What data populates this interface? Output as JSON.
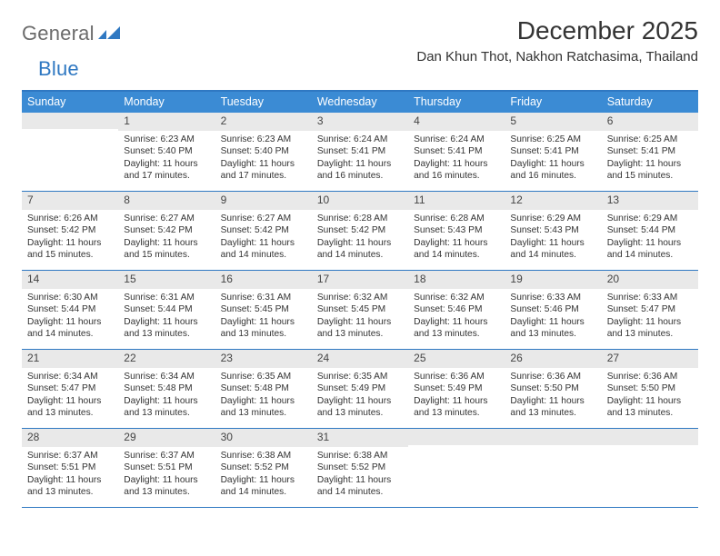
{
  "logo": {
    "text_a": "General",
    "text_b": "Blue"
  },
  "title": "December 2025",
  "location": "Dan Khun Thot, Nakhon Ratchasima, Thailand",
  "colors": {
    "header_bg": "#3b8bd4",
    "accent_border": "#2f78c2",
    "daynum_bg": "#e9e9e9",
    "text": "#333333",
    "logo_gray": "#6b6b6b"
  },
  "typography": {
    "title_fontsize": 28,
    "location_fontsize": 15,
    "dayheader_fontsize": 12.5,
    "cell_fontsize": 10.2
  },
  "day_names": [
    "Sunday",
    "Monday",
    "Tuesday",
    "Wednesday",
    "Thursday",
    "Friday",
    "Saturday"
  ],
  "weeks": [
    [
      {
        "n": "",
        "sunrise": "",
        "sunset": "",
        "daylight": ""
      },
      {
        "n": "1",
        "sunrise": "Sunrise: 6:23 AM",
        "sunset": "Sunset: 5:40 PM",
        "daylight": "Daylight: 11 hours and 17 minutes."
      },
      {
        "n": "2",
        "sunrise": "Sunrise: 6:23 AM",
        "sunset": "Sunset: 5:40 PM",
        "daylight": "Daylight: 11 hours and 17 minutes."
      },
      {
        "n": "3",
        "sunrise": "Sunrise: 6:24 AM",
        "sunset": "Sunset: 5:41 PM",
        "daylight": "Daylight: 11 hours and 16 minutes."
      },
      {
        "n": "4",
        "sunrise": "Sunrise: 6:24 AM",
        "sunset": "Sunset: 5:41 PM",
        "daylight": "Daylight: 11 hours and 16 minutes."
      },
      {
        "n": "5",
        "sunrise": "Sunrise: 6:25 AM",
        "sunset": "Sunset: 5:41 PM",
        "daylight": "Daylight: 11 hours and 16 minutes."
      },
      {
        "n": "6",
        "sunrise": "Sunrise: 6:25 AM",
        "sunset": "Sunset: 5:41 PM",
        "daylight": "Daylight: 11 hours and 15 minutes."
      }
    ],
    [
      {
        "n": "7",
        "sunrise": "Sunrise: 6:26 AM",
        "sunset": "Sunset: 5:42 PM",
        "daylight": "Daylight: 11 hours and 15 minutes."
      },
      {
        "n": "8",
        "sunrise": "Sunrise: 6:27 AM",
        "sunset": "Sunset: 5:42 PM",
        "daylight": "Daylight: 11 hours and 15 minutes."
      },
      {
        "n": "9",
        "sunrise": "Sunrise: 6:27 AM",
        "sunset": "Sunset: 5:42 PM",
        "daylight": "Daylight: 11 hours and 14 minutes."
      },
      {
        "n": "10",
        "sunrise": "Sunrise: 6:28 AM",
        "sunset": "Sunset: 5:42 PM",
        "daylight": "Daylight: 11 hours and 14 minutes."
      },
      {
        "n": "11",
        "sunrise": "Sunrise: 6:28 AM",
        "sunset": "Sunset: 5:43 PM",
        "daylight": "Daylight: 11 hours and 14 minutes."
      },
      {
        "n": "12",
        "sunrise": "Sunrise: 6:29 AM",
        "sunset": "Sunset: 5:43 PM",
        "daylight": "Daylight: 11 hours and 14 minutes."
      },
      {
        "n": "13",
        "sunrise": "Sunrise: 6:29 AM",
        "sunset": "Sunset: 5:44 PM",
        "daylight": "Daylight: 11 hours and 14 minutes."
      }
    ],
    [
      {
        "n": "14",
        "sunrise": "Sunrise: 6:30 AM",
        "sunset": "Sunset: 5:44 PM",
        "daylight": "Daylight: 11 hours and 14 minutes."
      },
      {
        "n": "15",
        "sunrise": "Sunrise: 6:31 AM",
        "sunset": "Sunset: 5:44 PM",
        "daylight": "Daylight: 11 hours and 13 minutes."
      },
      {
        "n": "16",
        "sunrise": "Sunrise: 6:31 AM",
        "sunset": "Sunset: 5:45 PM",
        "daylight": "Daylight: 11 hours and 13 minutes."
      },
      {
        "n": "17",
        "sunrise": "Sunrise: 6:32 AM",
        "sunset": "Sunset: 5:45 PM",
        "daylight": "Daylight: 11 hours and 13 minutes."
      },
      {
        "n": "18",
        "sunrise": "Sunrise: 6:32 AM",
        "sunset": "Sunset: 5:46 PM",
        "daylight": "Daylight: 11 hours and 13 minutes."
      },
      {
        "n": "19",
        "sunrise": "Sunrise: 6:33 AM",
        "sunset": "Sunset: 5:46 PM",
        "daylight": "Daylight: 11 hours and 13 minutes."
      },
      {
        "n": "20",
        "sunrise": "Sunrise: 6:33 AM",
        "sunset": "Sunset: 5:47 PM",
        "daylight": "Daylight: 11 hours and 13 minutes."
      }
    ],
    [
      {
        "n": "21",
        "sunrise": "Sunrise: 6:34 AM",
        "sunset": "Sunset: 5:47 PM",
        "daylight": "Daylight: 11 hours and 13 minutes."
      },
      {
        "n": "22",
        "sunrise": "Sunrise: 6:34 AM",
        "sunset": "Sunset: 5:48 PM",
        "daylight": "Daylight: 11 hours and 13 minutes."
      },
      {
        "n": "23",
        "sunrise": "Sunrise: 6:35 AM",
        "sunset": "Sunset: 5:48 PM",
        "daylight": "Daylight: 11 hours and 13 minutes."
      },
      {
        "n": "24",
        "sunrise": "Sunrise: 6:35 AM",
        "sunset": "Sunset: 5:49 PM",
        "daylight": "Daylight: 11 hours and 13 minutes."
      },
      {
        "n": "25",
        "sunrise": "Sunrise: 6:36 AM",
        "sunset": "Sunset: 5:49 PM",
        "daylight": "Daylight: 11 hours and 13 minutes."
      },
      {
        "n": "26",
        "sunrise": "Sunrise: 6:36 AM",
        "sunset": "Sunset: 5:50 PM",
        "daylight": "Daylight: 11 hours and 13 minutes."
      },
      {
        "n": "27",
        "sunrise": "Sunrise: 6:36 AM",
        "sunset": "Sunset: 5:50 PM",
        "daylight": "Daylight: 11 hours and 13 minutes."
      }
    ],
    [
      {
        "n": "28",
        "sunrise": "Sunrise: 6:37 AM",
        "sunset": "Sunset: 5:51 PM",
        "daylight": "Daylight: 11 hours and 13 minutes."
      },
      {
        "n": "29",
        "sunrise": "Sunrise: 6:37 AM",
        "sunset": "Sunset: 5:51 PM",
        "daylight": "Daylight: 11 hours and 13 minutes."
      },
      {
        "n": "30",
        "sunrise": "Sunrise: 6:38 AM",
        "sunset": "Sunset: 5:52 PM",
        "daylight": "Daylight: 11 hours and 14 minutes."
      },
      {
        "n": "31",
        "sunrise": "Sunrise: 6:38 AM",
        "sunset": "Sunset: 5:52 PM",
        "daylight": "Daylight: 11 hours and 14 minutes."
      },
      {
        "n": "",
        "sunrise": "",
        "sunset": "",
        "daylight": ""
      },
      {
        "n": "",
        "sunrise": "",
        "sunset": "",
        "daylight": ""
      },
      {
        "n": "",
        "sunrise": "",
        "sunset": "",
        "daylight": ""
      }
    ]
  ]
}
